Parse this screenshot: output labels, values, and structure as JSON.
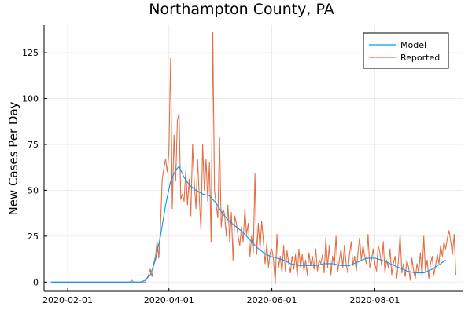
{
  "chart_data": {
    "type": "line",
    "title": "Northampton County, PA",
    "xlabel": "",
    "ylabel": "New Cases Per Day",
    "x_type": "date",
    "x_range": [
      "2020-01-18",
      "2020-09-22"
    ],
    "x_ticks": [
      "2020-02-01",
      "2020-04-01",
      "2020-06-01",
      "2020-08-01"
    ],
    "ylim": [
      -5,
      140
    ],
    "y_ticks": [
      0,
      25,
      50,
      75,
      100,
      125
    ],
    "grid": true,
    "legend_position": "top-right",
    "series": [
      {
        "name": "Model",
        "color": "#009AFA",
        "points": [
          [
            "2020-01-22",
            0
          ],
          [
            "2020-03-15",
            0
          ],
          [
            "2020-03-18",
            1
          ],
          [
            "2020-03-21",
            4
          ],
          [
            "2020-03-24",
            12
          ],
          [
            "2020-03-27",
            25
          ],
          [
            "2020-03-30",
            42
          ],
          [
            "2020-04-02",
            55
          ],
          [
            "2020-04-05",
            61
          ],
          [
            "2020-04-07",
            63
          ],
          [
            "2020-04-10",
            57
          ],
          [
            "2020-04-13",
            53
          ],
          [
            "2020-04-17",
            50
          ],
          [
            "2020-04-21",
            48
          ],
          [
            "2020-04-25",
            47
          ],
          [
            "2020-04-29",
            43
          ],
          [
            "2020-05-03",
            37
          ],
          [
            "2020-05-07",
            33
          ],
          [
            "2020-05-11",
            30
          ],
          [
            "2020-05-15",
            27
          ],
          [
            "2020-05-19",
            23
          ],
          [
            "2020-05-23",
            19
          ],
          [
            "2020-05-27",
            16
          ],
          [
            "2020-05-31",
            14
          ],
          [
            "2020-06-04",
            13
          ],
          [
            "2020-06-08",
            12
          ],
          [
            "2020-06-12",
            10
          ],
          [
            "2020-06-17",
            9
          ],
          [
            "2020-06-22",
            9
          ],
          [
            "2020-06-27",
            9
          ],
          [
            "2020-07-02",
            10
          ],
          [
            "2020-07-07",
            10
          ],
          [
            "2020-07-12",
            9
          ],
          [
            "2020-07-17",
            9
          ],
          [
            "2020-07-22",
            11
          ],
          [
            "2020-07-27",
            13
          ],
          [
            "2020-08-01",
            13
          ],
          [
            "2020-08-05",
            12
          ],
          [
            "2020-08-10",
            10
          ],
          [
            "2020-08-15",
            8
          ],
          [
            "2020-08-20",
            6
          ],
          [
            "2020-08-25",
            5
          ],
          [
            "2020-08-30",
            5
          ],
          [
            "2020-09-04",
            7
          ],
          [
            "2020-09-09",
            10
          ],
          [
            "2020-09-12",
            12
          ]
        ]
      },
      {
        "name": "Reported",
        "color": "#E26F46",
        "points": [
          [
            "2020-01-22",
            0
          ],
          [
            "2020-03-09",
            0
          ],
          [
            "2020-03-10",
            1
          ],
          [
            "2020-03-11",
            0
          ],
          [
            "2020-03-18",
            0
          ],
          [
            "2020-03-19",
            2
          ],
          [
            "2020-03-20",
            4
          ],
          [
            "2020-03-21",
            7
          ],
          [
            "2020-03-22",
            3
          ],
          [
            "2020-03-23",
            10
          ],
          [
            "2020-03-24",
            14
          ],
          [
            "2020-03-25",
            22
          ],
          [
            "2020-03-26",
            13
          ],
          [
            "2020-03-27",
            30
          ],
          [
            "2020-03-28",
            56
          ],
          [
            "2020-03-29",
            62
          ],
          [
            "2020-03-30",
            67
          ],
          [
            "2020-03-31",
            60
          ],
          [
            "2020-04-01",
            71
          ],
          [
            "2020-04-02",
            122
          ],
          [
            "2020-04-03",
            40
          ],
          [
            "2020-04-04",
            80
          ],
          [
            "2020-04-05",
            55
          ],
          [
            "2020-04-06",
            88
          ],
          [
            "2020-04-07",
            92
          ],
          [
            "2020-04-08",
            45
          ],
          [
            "2020-04-09",
            48
          ],
          [
            "2020-04-10",
            44
          ],
          [
            "2020-04-11",
            61
          ],
          [
            "2020-04-12",
            42
          ],
          [
            "2020-04-13",
            56
          ],
          [
            "2020-04-14",
            36
          ],
          [
            "2020-04-15",
            75
          ],
          [
            "2020-04-16",
            55
          ],
          [
            "2020-04-17",
            40
          ],
          [
            "2020-04-18",
            67
          ],
          [
            "2020-04-19",
            45
          ],
          [
            "2020-04-20",
            28
          ],
          [
            "2020-04-21",
            75
          ],
          [
            "2020-04-22",
            50
          ],
          [
            "2020-04-23",
            67
          ],
          [
            "2020-04-24",
            44
          ],
          [
            "2020-04-25",
            65
          ],
          [
            "2020-04-26",
            22
          ],
          [
            "2020-04-27",
            136
          ],
          [
            "2020-04-28",
            50
          ],
          [
            "2020-04-29",
            42
          ],
          [
            "2020-04-30",
            35
          ],
          [
            "2020-05-01",
            79
          ],
          [
            "2020-05-02",
            30
          ],
          [
            "2020-05-03",
            40
          ],
          [
            "2020-05-04",
            37
          ],
          [
            "2020-05-05",
            25
          ],
          [
            "2020-05-06",
            42
          ],
          [
            "2020-05-07",
            22
          ],
          [
            "2020-05-08",
            38
          ],
          [
            "2020-05-09",
            12
          ],
          [
            "2020-05-10",
            36
          ],
          [
            "2020-05-11",
            32
          ],
          [
            "2020-05-12",
            25
          ],
          [
            "2020-05-13",
            20
          ],
          [
            "2020-05-14",
            30
          ],
          [
            "2020-05-15",
            22
          ],
          [
            "2020-05-16",
            40
          ],
          [
            "2020-05-17",
            26
          ],
          [
            "2020-05-18",
            32
          ],
          [
            "2020-05-19",
            14
          ],
          [
            "2020-05-20",
            25
          ],
          [
            "2020-05-21",
            16
          ],
          [
            "2020-05-22",
            59
          ],
          [
            "2020-05-23",
            15
          ],
          [
            "2020-05-24",
            32
          ],
          [
            "2020-05-25",
            18
          ],
          [
            "2020-05-26",
            33
          ],
          [
            "2020-05-27",
            22
          ],
          [
            "2020-05-28",
            10
          ],
          [
            "2020-05-29",
            21
          ],
          [
            "2020-05-30",
            8
          ],
          [
            "2020-05-31",
            16
          ],
          [
            "2020-06-01",
            18
          ],
          [
            "2020-06-02",
            12
          ],
          [
            "2020-06-03",
            -1
          ],
          [
            "2020-06-04",
            26
          ],
          [
            "2020-06-05",
            8
          ],
          [
            "2020-06-06",
            14
          ],
          [
            "2020-06-07",
            5
          ],
          [
            "2020-06-08",
            20
          ],
          [
            "2020-06-09",
            6
          ],
          [
            "2020-06-10",
            17
          ],
          [
            "2020-06-11",
            10
          ],
          [
            "2020-06-12",
            5
          ],
          [
            "2020-06-13",
            14
          ],
          [
            "2020-06-14",
            7
          ],
          [
            "2020-06-15",
            15
          ],
          [
            "2020-06-16",
            3
          ],
          [
            "2020-06-17",
            18
          ],
          [
            "2020-06-18",
            8
          ],
          [
            "2020-06-19",
            15
          ],
          [
            "2020-06-20",
            6
          ],
          [
            "2020-06-21",
            12
          ],
          [
            "2020-06-22",
            4
          ],
          [
            "2020-06-23",
            16
          ],
          [
            "2020-06-24",
            9
          ],
          [
            "2020-06-25",
            14
          ],
          [
            "2020-06-26",
            7
          ],
          [
            "2020-06-27",
            18
          ],
          [
            "2020-06-28",
            6
          ],
          [
            "2020-06-29",
            12
          ],
          [
            "2020-06-30",
            10
          ],
          [
            "2020-07-01",
            15
          ],
          [
            "2020-07-02",
            5
          ],
          [
            "2020-07-03",
            24
          ],
          [
            "2020-07-04",
            8
          ],
          [
            "2020-07-05",
            20
          ],
          [
            "2020-07-06",
            4
          ],
          [
            "2020-07-07",
            14
          ],
          [
            "2020-07-08",
            9
          ],
          [
            "2020-07-09",
            25
          ],
          [
            "2020-07-10",
            6
          ],
          [
            "2020-07-11",
            12
          ],
          [
            "2020-07-12",
            18
          ],
          [
            "2020-07-13",
            8
          ],
          [
            "2020-07-14",
            20
          ],
          [
            "2020-07-15",
            10
          ],
          [
            "2020-07-16",
            5
          ],
          [
            "2020-07-17",
            15
          ],
          [
            "2020-07-18",
            22
          ],
          [
            "2020-07-19",
            9
          ],
          [
            "2020-07-20",
            14
          ],
          [
            "2020-07-21",
            6
          ],
          [
            "2020-07-22",
            16
          ],
          [
            "2020-07-23",
            24
          ],
          [
            "2020-07-24",
            12
          ],
          [
            "2020-07-25",
            20
          ],
          [
            "2020-07-26",
            14
          ],
          [
            "2020-07-27",
            10
          ],
          [
            "2020-07-28",
            26
          ],
          [
            "2020-07-29",
            8
          ],
          [
            "2020-07-30",
            12
          ],
          [
            "2020-07-31",
            18
          ],
          [
            "2020-08-01",
            10
          ],
          [
            "2020-08-02",
            6
          ],
          [
            "2020-08-03",
            20
          ],
          [
            "2020-08-04",
            16
          ],
          [
            "2020-08-05",
            9
          ],
          [
            "2020-08-06",
            22
          ],
          [
            "2020-08-07",
            5
          ],
          [
            "2020-08-08",
            12
          ],
          [
            "2020-08-09",
            8
          ],
          [
            "2020-08-10",
            18
          ],
          [
            "2020-08-11",
            4
          ],
          [
            "2020-08-12",
            10
          ],
          [
            "2020-08-13",
            14
          ],
          [
            "2020-08-14",
            2
          ],
          [
            "2020-08-15",
            12
          ],
          [
            "2020-08-16",
            26
          ],
          [
            "2020-08-17",
            5
          ],
          [
            "2020-08-18",
            10
          ],
          [
            "2020-08-19",
            3
          ],
          [
            "2020-08-20",
            12
          ],
          [
            "2020-08-21",
            8
          ],
          [
            "2020-08-22",
            1
          ],
          [
            "2020-08-23",
            13
          ],
          [
            "2020-08-24",
            6
          ],
          [
            "2020-08-25",
            2
          ],
          [
            "2020-08-26",
            10
          ],
          [
            "2020-08-27",
            5
          ],
          [
            "2020-08-28",
            16
          ],
          [
            "2020-08-29",
            3
          ],
          [
            "2020-08-30",
            25
          ],
          [
            "2020-08-31",
            6
          ],
          [
            "2020-09-01",
            12
          ],
          [
            "2020-09-02",
            2
          ],
          [
            "2020-09-03",
            10
          ],
          [
            "2020-09-04",
            14
          ],
          [
            "2020-09-05",
            4
          ],
          [
            "2020-09-06",
            9
          ],
          [
            "2020-09-07",
            15
          ],
          [
            "2020-09-08",
            10
          ],
          [
            "2020-09-09",
            20
          ],
          [
            "2020-09-10",
            14
          ],
          [
            "2020-09-11",
            22
          ],
          [
            "2020-09-12",
            18
          ],
          [
            "2020-09-13",
            24
          ],
          [
            "2020-09-14",
            28
          ],
          [
            "2020-09-15",
            22
          ],
          [
            "2020-09-16",
            15
          ],
          [
            "2020-09-17",
            26
          ],
          [
            "2020-09-18",
            4
          ]
        ]
      }
    ]
  }
}
